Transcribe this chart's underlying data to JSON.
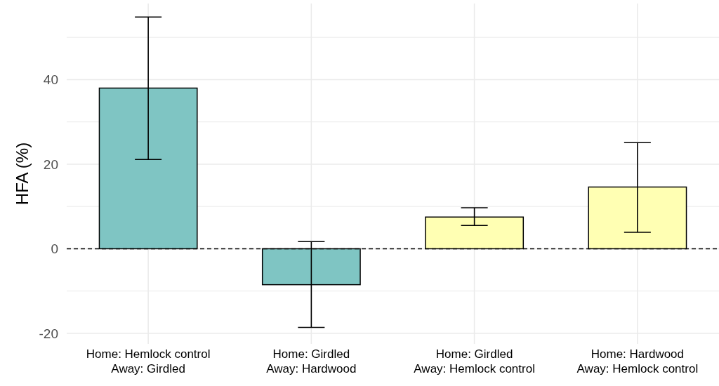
{
  "chart_data": {
    "type": "bar",
    "ylabel": "HFA (%)",
    "categories": [
      "Home: Hemlock control\nAway: Girdled",
      "Home: Girdled\nAway: Hardwood",
      "Home: Girdled\nAway: Hemlock control",
      "Home: Hardwood\nAway: Hemlock control"
    ],
    "values": [
      38,
      -8.5,
      7.5,
      14.6
    ],
    "colors": [
      "#7fc5c3",
      "#7fc5c3",
      "#ffffb3",
      "#ffffb3"
    ],
    "errors": [
      [
        21.1,
        54.8
      ],
      [
        -18.6,
        1.7
      ],
      [
        5.5,
        9.7
      ],
      [
        3.9,
        25.1
      ]
    ],
    "ylim": [
      -22.5,
      58
    ],
    "yticks": [
      -20,
      {
        "value": -10,
        "label": null
      },
      0,
      {
        "value": 10,
        "label": null
      },
      20,
      {
        "value": 30,
        "label": null
      },
      40,
      {
        "value": 50,
        "label": null
      }
    ],
    "grid": true,
    "ref_lines": [
      {
        "axis": "y",
        "value": 0,
        "line_style": "dashed",
        "color": "#000000"
      }
    ]
  }
}
